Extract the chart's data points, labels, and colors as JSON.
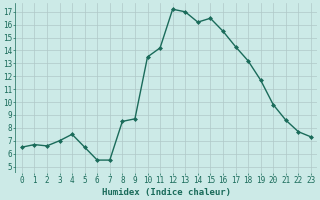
{
  "x": [
    0,
    1,
    2,
    3,
    4,
    5,
    6,
    7,
    8,
    9,
    10,
    11,
    12,
    13,
    14,
    15,
    16,
    17,
    18,
    19,
    20,
    21,
    22,
    23
  ],
  "y": [
    6.5,
    6.7,
    6.6,
    7.0,
    7.5,
    6.5,
    5.5,
    5.5,
    8.5,
    8.7,
    13.5,
    14.2,
    17.2,
    17.0,
    16.2,
    16.5,
    15.5,
    14.3,
    13.2,
    11.7,
    9.8,
    8.6,
    7.7,
    7.3
  ],
  "line_color": "#1a6b5a",
  "marker": "D",
  "marker_size": 2,
  "xlabel": "Humidex (Indice chaleur)",
  "xlim": [
    -0.5,
    23.5
  ],
  "ylim": [
    4.5,
    17.7
  ],
  "yticks": [
    5,
    6,
    7,
    8,
    9,
    10,
    11,
    12,
    13,
    14,
    15,
    16,
    17
  ],
  "xticks": [
    0,
    1,
    2,
    3,
    4,
    5,
    6,
    7,
    8,
    9,
    10,
    11,
    12,
    13,
    14,
    15,
    16,
    17,
    18,
    19,
    20,
    21,
    22,
    23
  ],
  "bg_color": "#cceae7",
  "grid_color": "#b0c8c8",
  "line_width": 1.0,
  "tick_label_color": "#1a6b5a",
  "xlabel_color": "#1a6b5a",
  "tick_fontsize": 5.5,
  "xlabel_fontsize": 6.5
}
